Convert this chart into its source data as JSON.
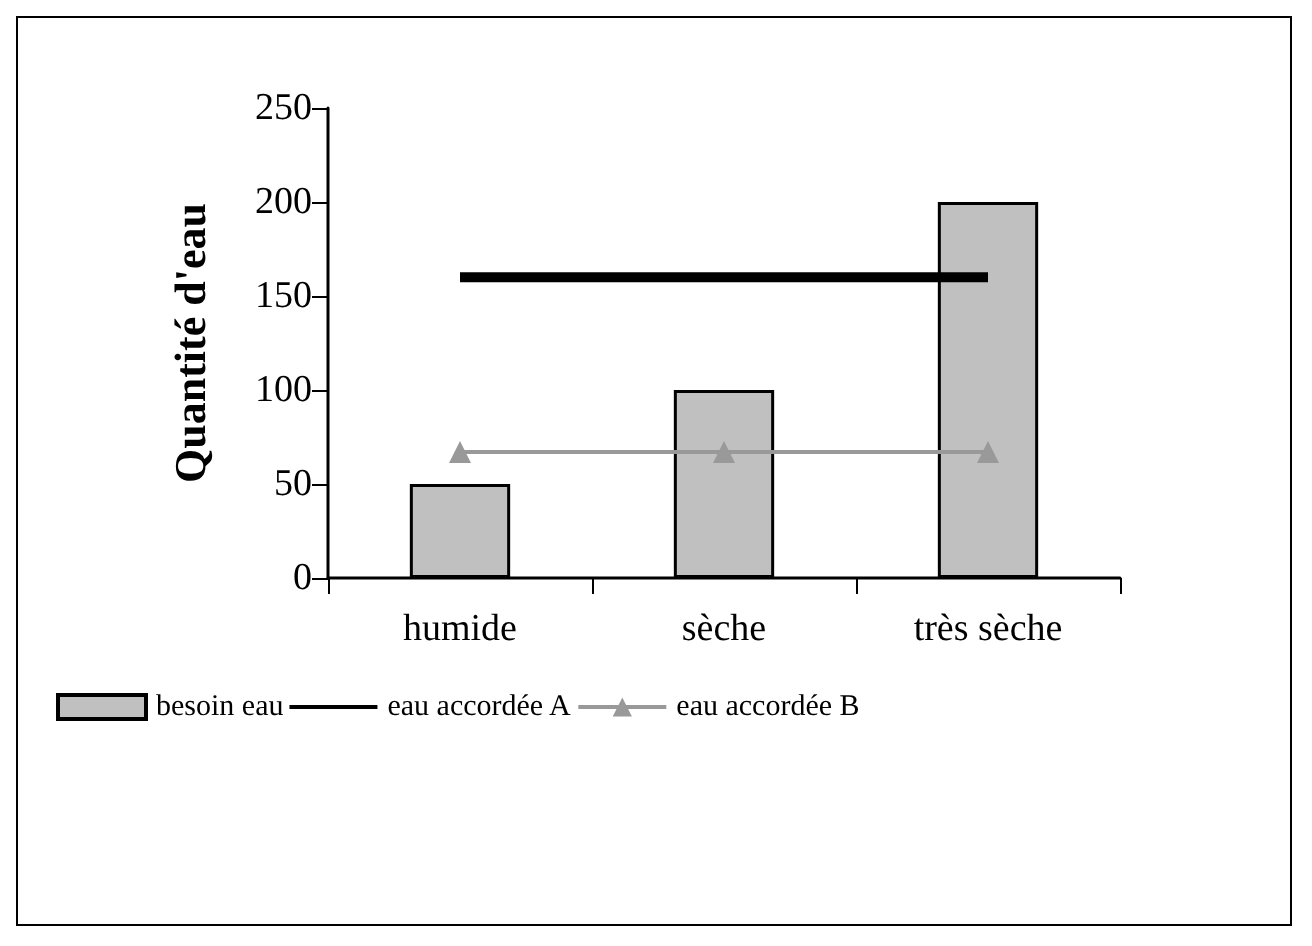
{
  "chart_data": {
    "type": "bar",
    "ylabel": "Quantité d'eau",
    "categories": [
      "humide",
      "sèche",
      "très sèche"
    ],
    "series": [
      {
        "name": "besoin eau",
        "color": "#c0c0c0",
        "values": [
          50,
          100,
          200
        ]
      },
      {
        "name": "eau accordée A",
        "type": "line",
        "color": "#000000",
        "marker": "none",
        "values": [
          160,
          160,
          160
        ]
      },
      {
        "name": "eau accordée B",
        "type": "line",
        "color": "#999999",
        "marker": "triangle",
        "values": [
          67,
          67,
          67
        ]
      }
    ],
    "ylim": [
      0,
      250
    ],
    "yticks": [
      0,
      50,
      100,
      150,
      200,
      250
    ],
    "grid": false,
    "legend": "bottom"
  }
}
